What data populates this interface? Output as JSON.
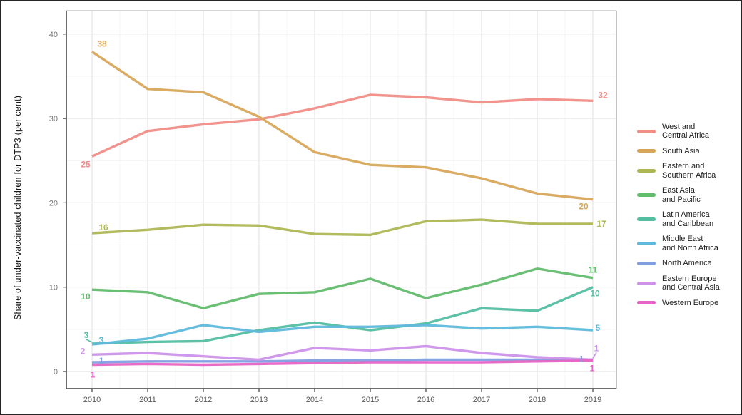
{
  "chart_data": {
    "type": "line",
    "title": "",
    "xlabel": "",
    "ylabel": "Share of under-vaccinated children for DTP3 (per cent)",
    "x": [
      "2010",
      "2011",
      "2012",
      "2013",
      "2014",
      "2015",
      "2016",
      "2017",
      "2018",
      "2019"
    ],
    "ylim": [
      0,
      42
    ],
    "yticks": [
      0,
      10,
      20,
      30,
      40
    ],
    "grid": true,
    "legend_position": "right",
    "series": [
      {
        "name": "West and Central Africa",
        "legend": "West and\nCentral Africa",
        "color": "#F08E88",
        "values": [
          25.5,
          28.5,
          29.3,
          29.9,
          31.2,
          32.8,
          32.5,
          31.9,
          32.3,
          32.1
        ],
        "start_label": {
          "text": "25",
          "dx": -9,
          "dy": 11,
          "leader": false
        },
        "end_label": {
          "text": "32",
          "dx": 14,
          "dy": -8,
          "leader": false
        }
      },
      {
        "name": "South Asia",
        "legend": "South Asia",
        "color": "#D8A65A",
        "values": [
          37.9,
          33.5,
          33.1,
          30.2,
          26.0,
          24.5,
          24.2,
          22.9,
          21.1,
          20.4
        ],
        "start_label": {
          "text": "38",
          "dx": 14,
          "dy": -11,
          "leader": false
        },
        "end_label": {
          "text": "20",
          "dx": -13,
          "dy": 10,
          "leader": false
        }
      },
      {
        "name": "Eastern and Southern Africa",
        "legend": "Eastern and\nSouthern Africa",
        "color": "#AEB755",
        "values": [
          16.4,
          16.8,
          17.4,
          17.3,
          16.3,
          16.2,
          17.8,
          18.0,
          17.5,
          17.5
        ],
        "start_label": {
          "text": "16",
          "dx": 16,
          "dy": -8,
          "leader": false
        },
        "end_label": {
          "text": "17",
          "dx": 12,
          "dy": 0,
          "leader": false
        }
      },
      {
        "name": "East Asia and Pacific",
        "legend": "East Asia\nand Pacific",
        "color": "#62BC6E",
        "values": [
          9.7,
          9.4,
          7.5,
          9.2,
          9.4,
          11.0,
          8.7,
          10.3,
          12.2,
          11.1
        ],
        "start_label": {
          "text": "10",
          "dx": -9,
          "dy": 10,
          "leader": false
        },
        "end_label": {
          "text": "11",
          "dx": 0,
          "dy": -11,
          "leader": false
        }
      },
      {
        "name": "Latin America and Caribbean",
        "legend": "Latin America\nand Caribbean",
        "color": "#54BEA2",
        "values": [
          3.3,
          3.5,
          3.6,
          4.9,
          5.8,
          4.9,
          5.7,
          7.5,
          7.2,
          10.0
        ],
        "start_label": {
          "text": "3",
          "dx": -8,
          "dy": -12,
          "leader": true
        },
        "end_label": {
          "text": "10",
          "dx": 3,
          "dy": 9,
          "leader": false
        }
      },
      {
        "name": "Middle East and North Africa",
        "legend": "Middle East\nand North Africa",
        "color": "#5FB9DC",
        "values": [
          3.2,
          3.9,
          5.5,
          4.7,
          5.3,
          5.3,
          5.5,
          5.1,
          5.3,
          4.9
        ],
        "start_label": {
          "text": "3",
          "dx": 13,
          "dy": -6,
          "leader": false
        },
        "end_label": {
          "text": "5",
          "dx": 7,
          "dy": -3,
          "leader": false
        }
      },
      {
        "name": "North America",
        "legend": "North America",
        "color": "#839EE0",
        "values": [
          1.1,
          1.2,
          1.2,
          1.2,
          1.3,
          1.3,
          1.4,
          1.4,
          1.4,
          1.4
        ],
        "start_label": {
          "text": "1",
          "dx": 13,
          "dy": -2,
          "leader": false
        },
        "end_label": {
          "text": "1",
          "dx": -16,
          "dy": -1,
          "leader": false
        }
      },
      {
        "name": "Eastern Europe and Central Asia",
        "legend": "Eastern Europe\nand Central Asia",
        "color": "#CE92EA",
        "values": [
          2.0,
          2.2,
          1.8,
          1.4,
          2.8,
          2.5,
          3.0,
          2.2,
          1.7,
          1.4
        ],
        "start_label": {
          "text": "2",
          "dx": -13,
          "dy": -5,
          "leader": false
        },
        "end_label": {
          "text": "1",
          "dx": 5,
          "dy": -16,
          "leader": true
        }
      },
      {
        "name": "Western Europe",
        "legend": "Western Europe",
        "color": "#E763C4",
        "values": [
          0.8,
          0.9,
          0.8,
          0.9,
          1.0,
          1.1,
          1.1,
          1.1,
          1.2,
          1.3
        ],
        "start_label": {
          "text": "1",
          "dx": 1,
          "dy": 14,
          "leader": false
        },
        "end_label": {
          "text": "1",
          "dx": -1,
          "dy": 11,
          "leader": false
        }
      }
    ]
  }
}
